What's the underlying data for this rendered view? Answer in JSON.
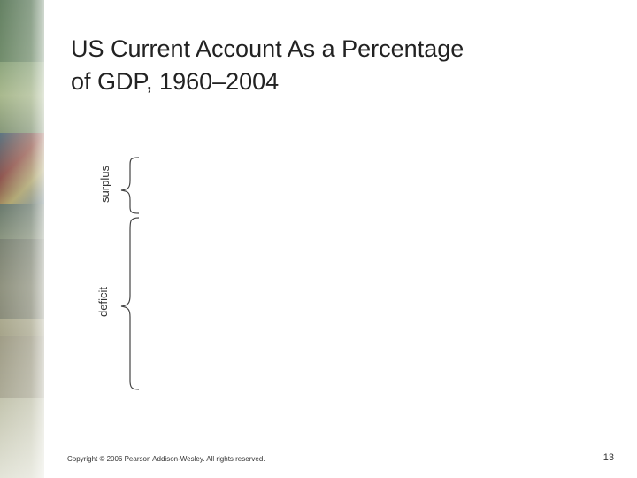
{
  "slide": {
    "title_line1": "US Current Account As a Percentage",
    "title_line2": "of GDP, 1960–2004",
    "labels": {
      "surplus": "surplus",
      "deficit": "deficit"
    },
    "footer": {
      "copyright": "Copyright © 2006 Pearson Addison-Wesley. All rights reserved.",
      "page_number": "13"
    }
  },
  "colors": {
    "text": "#222222",
    "sidebar": "#8aa37c"
  }
}
